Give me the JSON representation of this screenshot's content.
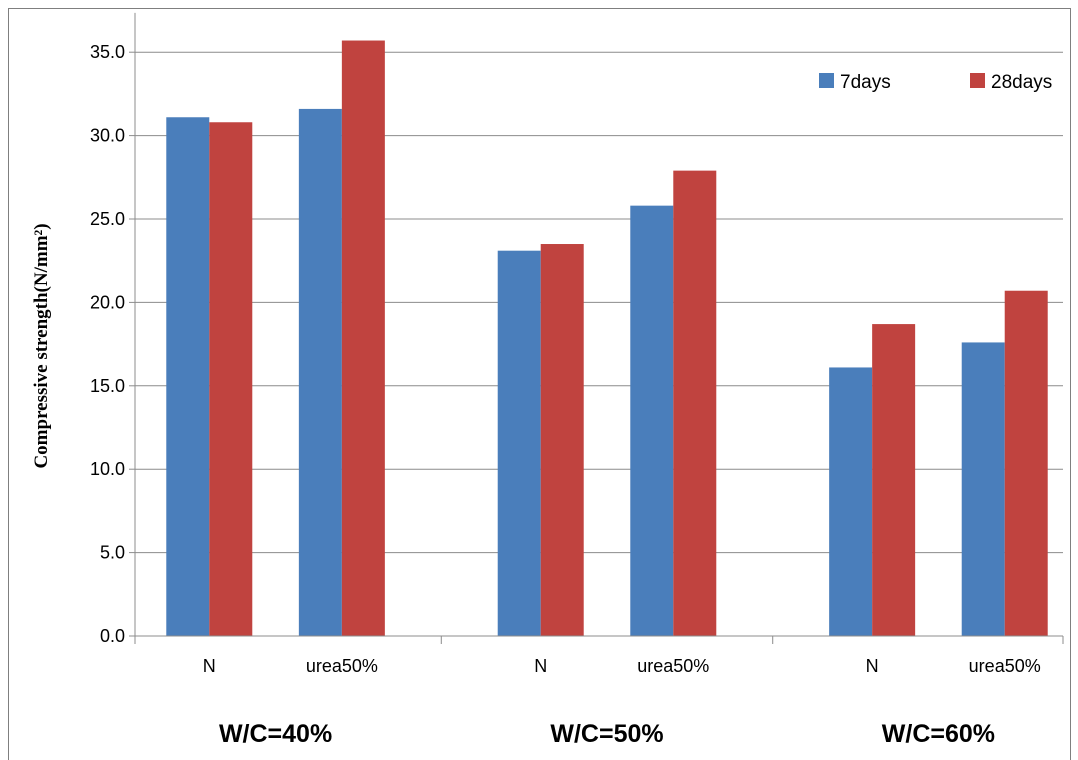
{
  "chart_data": {
    "type": "bar",
    "ylabel": "Compressive strength(N/mm²)",
    "ylim": [
      0,
      37
    ],
    "yticks": [
      "0.0",
      "5.0",
      "10.0",
      "15.0",
      "20.0",
      "25.0",
      "30.0",
      "35.0"
    ],
    "grid": true,
    "legend_position": "top-right",
    "categories": [
      "N",
      "urea50%",
      "N",
      "urea50%",
      "N",
      "urea50%"
    ],
    "groups": [
      "W/C=40%",
      "W/C=50%",
      "W/C=60%"
    ],
    "series": [
      {
        "name": "7days",
        "color": "#4a7ebb",
        "values": [
          31.1,
          31.6,
          23.1,
          25.8,
          16.1,
          17.6
        ]
      },
      {
        "name": "28days",
        "color": "#c0433f",
        "values": [
          30.8,
          35.7,
          23.5,
          27.9,
          18.7,
          20.7
        ]
      }
    ]
  }
}
